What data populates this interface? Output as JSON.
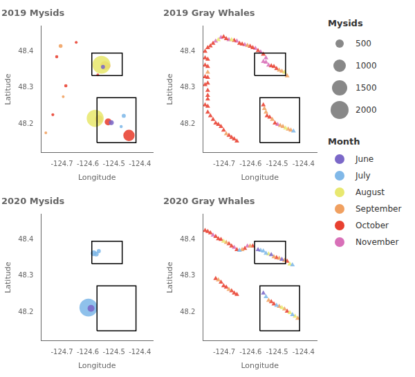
{
  "chart_data": [
    {
      "type": "bubble",
      "title": "2019 Mysids",
      "x_label": "Longitude",
      "y_label": "Latitude",
      "xlim": [
        -124.78,
        -124.35
      ],
      "ylim": [
        48.12,
        48.47
      ],
      "xticks": [
        -124.7,
        -124.6,
        -124.5,
        -124.4
      ],
      "yticks": [
        48.2,
        48.3,
        48.4
      ],
      "grid": false,
      "marker": "circle",
      "boxes": [
        [
          -124.585,
          -124.468,
          48.333,
          48.395
        ],
        [
          -124.565,
          -124.415,
          48.148,
          48.272
        ]
      ],
      "series": [
        {
          "name": "June",
          "color": "#7b68c8",
          "x": [
            -124.542,
            -124.51
          ],
          "values": [
            48.357,
            48.203
          ],
          "sizes": [
            100,
            150
          ]
        },
        {
          "name": "July",
          "color": "#80b8e8",
          "x": [
            -124.462,
            -124.472
          ],
          "values": [
            48.222,
            48.192
          ],
          "sizes": [
            100,
            60
          ]
        },
        {
          "name": "August",
          "color": "#e8e870",
          "x": [
            -124.548,
            -124.572
          ],
          "values": [
            48.363,
            48.215
          ],
          "sizes": [
            2000,
            1800
          ]
        },
        {
          "name": "September",
          "color": "#f0a060",
          "x": [
            -124.705,
            -124.695,
            -124.762,
            -124.535,
            -124.558
          ],
          "values": [
            48.415,
            48.275,
            48.175,
            48.361,
            48.213
          ],
          "sizes": [
            90,
            45,
            35,
            500,
            400
          ]
        },
        {
          "name": "October",
          "color": "#e84030",
          "x": [
            -124.72,
            -124.645,
            -124.685,
            -124.735,
            -124.525,
            -124.522,
            -124.442,
            -124.562
          ],
          "values": [
            48.385,
            48.425,
            48.305,
            48.225,
            48.36,
            48.205,
            48.168,
            48.335
          ],
          "sizes": [
            60,
            35,
            65,
            55,
            200,
            300,
            800,
            45
          ]
        }
      ]
    },
    {
      "type": "scatter",
      "title": "2019 Gray Whales",
      "x_label": "Longitude",
      "y_label": "Latitude",
      "xlim": [
        -124.78,
        -124.35
      ],
      "ylim": [
        48.12,
        48.47
      ],
      "xticks": [
        -124.7,
        -124.6,
        -124.5,
        -124.4
      ],
      "yticks": [
        48.2,
        48.3,
        48.4
      ],
      "grid": false,
      "marker": "triangle",
      "boxes": [
        [
          -124.585,
          -124.468,
          48.333,
          48.395
        ],
        [
          -124.565,
          -124.415,
          48.148,
          48.272
        ]
      ],
      "series": [
        {
          "name": "July",
          "color": "#80b8e8",
          "x": [
            -124.438
          ],
          "values": [
            48.18
          ]
        },
        {
          "name": "August",
          "color": "#e8e870",
          "x": [
            -124.722,
            -124.672,
            -124.472,
            -124.468
          ],
          "values": [
            48.432,
            48.432,
            48.342,
            48.188
          ]
        },
        {
          "name": "September",
          "color": "#f0a060",
          "x": [
            -124.612,
            -124.762,
            -124.692,
            -124.492,
            -124.482,
            -124.462,
            -124.548,
            -124.542,
            -124.518,
            -124.488,
            -124.478,
            -124.458,
            -124.448
          ],
          "values": [
            48.416,
            48.342,
            48.172,
            48.348,
            48.345,
            48.332,
            48.242,
            48.232,
            48.212,
            48.195,
            48.192,
            48.185,
            48.182
          ]
        },
        {
          "name": "October",
          "color": "#e84030",
          "x": [
            -124.772,
            -124.762,
            -124.752,
            -124.742,
            -124.702,
            -124.692,
            -124.662,
            -124.642,
            -124.632,
            -124.602,
            -124.592,
            -124.572,
            -124.552,
            -124.772,
            -124.762,
            -124.772,
            -124.762,
            -124.772,
            -124.762,
            -124.762,
            -124.772,
            -124.762,
            -124.762,
            -124.762,
            -124.772,
            -124.762,
            -124.762,
            -124.752,
            -124.742,
            -124.732,
            -124.722,
            -124.712,
            -124.702,
            -124.682,
            -124.672,
            -124.662,
            -124.652,
            -124.522,
            -124.512,
            -124.502,
            -124.552,
            -124.538,
            -124.528,
            -124.508
          ],
          "values": [
            48.4,
            48.41,
            48.415,
            48.422,
            48.44,
            48.435,
            48.43,
            48.422,
            48.42,
            48.414,
            48.41,
            48.402,
            48.392,
            48.382,
            48.378,
            48.362,
            48.358,
            48.33,
            48.328,
            48.312,
            48.308,
            48.292,
            48.278,
            48.268,
            48.252,
            48.248,
            48.232,
            48.222,
            48.212,
            48.202,
            48.198,
            48.192,
            48.182,
            48.168,
            48.162,
            48.158,
            48.152,
            48.36,
            48.358,
            48.352,
            48.252,
            48.222,
            48.218,
            48.202
          ]
        },
        {
          "name": "November",
          "color": "#d870b8",
          "x": [
            -124.732,
            -124.712,
            -124.682,
            -124.652,
            -124.622,
            -124.582,
            -124.562,
            -124.542,
            -124.552,
            -124.542,
            -124.532,
            -124.498
          ],
          "values": [
            48.428,
            48.438,
            48.432,
            48.428,
            48.418,
            48.408,
            48.398,
            48.382,
            48.372,
            48.37,
            48.362,
            48.198
          ]
        }
      ]
    },
    {
      "type": "bubble",
      "title": "2020 Mysids",
      "x_label": "Longitude",
      "y_label": "Latitude",
      "xlim": [
        -124.78,
        -124.35
      ],
      "ylim": [
        48.12,
        48.47
      ],
      "xticks": [
        -124.7,
        -124.6,
        -124.5,
        -124.4
      ],
      "yticks": [
        48.2,
        48.3,
        48.4
      ],
      "grid": false,
      "marker": "circle",
      "boxes": [
        [
          -124.585,
          -124.468,
          48.333,
          48.395
        ],
        [
          -124.565,
          -124.415,
          48.148,
          48.272
        ]
      ],
      "series": [
        {
          "name": "June",
          "color": "#7b68c8",
          "x": [
            -124.588
          ],
          "values": [
            48.21
          ],
          "sizes": [
            300
          ]
        },
        {
          "name": "July",
          "color": "#80b8e8",
          "x": [
            -124.578,
            -124.568,
            -124.558,
            -124.598
          ],
          "values": [
            48.362,
            48.36,
            48.368,
            48.212
          ],
          "sizes": [
            200,
            150,
            100,
            2000
          ]
        }
      ]
    },
    {
      "type": "scatter",
      "title": "2020 Gray Whales",
      "x_label": "Longitude",
      "y_label": "Latitude",
      "xlim": [
        -124.78,
        -124.35
      ],
      "ylim": [
        48.12,
        48.47
      ],
      "xticks": [
        -124.7,
        -124.6,
        -124.5,
        -124.4
      ],
      "yticks": [
        48.2,
        48.3,
        48.4
      ],
      "grid": false,
      "marker": "triangle",
      "boxes": [
        [
          -124.585,
          -124.468,
          48.333,
          48.395
        ],
        [
          -124.565,
          -124.415,
          48.148,
          48.272
        ]
      ],
      "series": [
        {
          "name": "June",
          "color": "#7b68c8",
          "x": [
            -124.572,
            -124.522,
            -124.482,
            -124.552
          ],
          "values": [
            48.372,
            48.358,
            48.345,
            48.252
          ]
        },
        {
          "name": "July",
          "color": "#80b8e8",
          "x": [
            -124.562,
            -124.552,
            -124.542,
            -124.442,
            -124.542,
            -124.502,
            -124.442,
            -124.642
          ],
          "values": [
            48.37,
            48.368,
            48.362,
            48.33,
            48.242,
            48.218,
            48.192,
            48.37
          ]
        },
        {
          "name": "August",
          "color": "#e8e870",
          "x": [
            -124.532,
            -124.452,
            -124.482,
            -124.452,
            -124.432,
            -124.702
          ],
          "values": [
            48.36,
            48.332,
            48.212,
            48.198,
            48.188,
            48.395
          ]
        },
        {
          "name": "September",
          "color": "#f0a060",
          "x": [
            -124.512,
            -124.492,
            -124.472,
            -124.532,
            -124.492,
            -124.472,
            -124.422,
            -124.602,
            -124.632,
            -124.692,
            -124.722,
            -124.682
          ],
          "values": [
            48.352,
            48.348,
            48.342,
            48.232,
            48.215,
            48.208,
            48.182,
            48.382,
            48.372,
            48.392,
            48.288,
            48.262
          ]
        },
        {
          "name": "October",
          "color": "#e84030",
          "x": [
            -124.502,
            -124.462,
            -124.522,
            -124.512,
            -124.462,
            -124.592,
            -124.622,
            -124.652,
            -124.672,
            -124.682,
            -124.712,
            -124.722,
            -124.732,
            -124.752,
            -124.762,
            -124.772,
            -124.732,
            -124.712,
            -124.702,
            -124.692,
            -124.672,
            -124.662,
            -124.652
          ],
          "values": [
            48.35,
            48.34,
            48.228,
            48.222,
            48.202,
            48.382,
            48.375,
            48.372,
            48.382,
            48.388,
            48.4,
            48.402,
            48.408,
            48.418,
            48.422,
            48.425,
            48.292,
            48.282,
            48.272,
            48.268,
            48.258,
            48.252,
            48.248
          ]
        },
        {
          "name": "November",
          "color": "#d870b8",
          "x": [
            -124.612,
            -124.662,
            -124.742
          ],
          "values": [
            48.382,
            48.378,
            48.412
          ]
        }
      ]
    }
  ],
  "size_legend": {
    "title": "Mysids",
    "sizes": [
      500,
      1000,
      1500,
      2000
    ],
    "color": "#888888"
  },
  "color_legend": {
    "title": "Month",
    "names": [
      "June",
      "July",
      "August",
      "September",
      "October",
      "November"
    ],
    "colors": [
      "#7b68c8",
      "#80b8e8",
      "#e8e870",
      "#f0a060",
      "#e84030",
      "#d870b8"
    ]
  }
}
